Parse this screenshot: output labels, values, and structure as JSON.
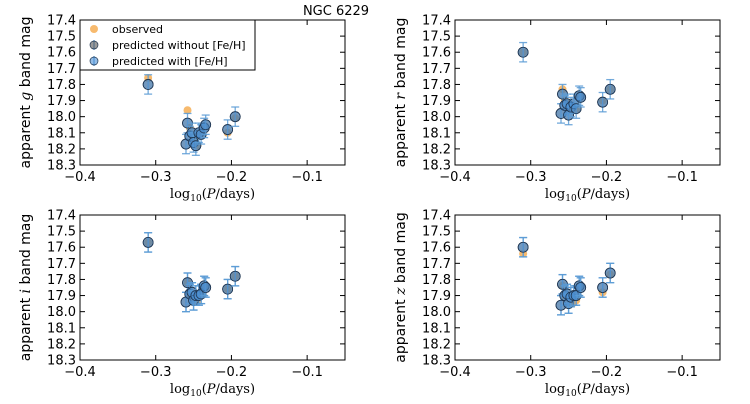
{
  "figure_title": "NGC 6229",
  "colors": {
    "observed": "#f5a94a",
    "predicted_without": "#555555",
    "predicted_with": "#4b8fd6",
    "errorbar": "#5b9bd5"
  },
  "chart_data": [
    {
      "type": "scatter",
      "panel": "g",
      "ylabel": "apparent g band mag",
      "ylabel_parts": [
        "apparent ",
        "g",
        " band mag"
      ],
      "xlabel": "log10(P/days)",
      "xlabel_parts": [
        "log",
        "10",
        "(",
        "P",
        "/days)"
      ],
      "xlim": [
        -0.4,
        -0.05
      ],
      "ylim": [
        18.3,
        17.4
      ],
      "y_inverted": true,
      "xticks": [
        -0.4,
        -0.3,
        -0.2,
        -0.1
      ],
      "xtick_labels": [
        "−0.4",
        "−0.3",
        "−0.2",
        "−0.1"
      ],
      "yticks": [
        17.4,
        17.5,
        17.6,
        17.7,
        17.8,
        17.9,
        18.0,
        18.1,
        18.2,
        18.3
      ],
      "ytick_labels": [
        "17.4",
        "17.5",
        "17.6",
        "17.7",
        "17.8",
        "17.9",
        "18.0",
        "18.1",
        "18.2",
        "18.3"
      ],
      "legend": {
        "position": "top-left",
        "entries": [
          "observed",
          "predicted without [Fe/H]",
          "predicted with [Fe/H]"
        ]
      },
      "series": [
        {
          "name": "observed",
          "x": [
            -0.31,
            -0.258,
            -0.255,
            -0.25,
            -0.245,
            -0.24,
            -0.235,
            -0.205,
            -0.195
          ],
          "y": [
            17.76,
            17.96,
            18.07,
            18.14,
            18.18,
            18.11,
            18.06,
            18.1,
            18.01
          ]
        },
        {
          "name": "predicted without [Fe/H]",
          "x": [
            -0.31,
            -0.26,
            -0.258,
            -0.255,
            -0.252,
            -0.25,
            -0.247,
            -0.243,
            -0.24,
            -0.236,
            -0.234,
            -0.205,
            -0.195
          ],
          "y": [
            17.8,
            18.17,
            18.04,
            18.12,
            18.1,
            18.16,
            18.18,
            18.1,
            18.11,
            18.07,
            18.05,
            18.08,
            18.0
          ]
        },
        {
          "name": "predicted with [Fe/H]",
          "x": [
            -0.31,
            -0.26,
            -0.258,
            -0.255,
            -0.252,
            -0.25,
            -0.247,
            -0.243,
            -0.24,
            -0.236,
            -0.234,
            -0.205,
            -0.195
          ],
          "y": [
            17.8,
            18.17,
            18.04,
            18.12,
            18.1,
            18.16,
            18.18,
            18.1,
            18.11,
            18.07,
            18.05,
            18.08,
            18.0
          ],
          "err": [
            0.06,
            0.06,
            0.06,
            0.06,
            0.06,
            0.06,
            0.06,
            0.06,
            0.06,
            0.06,
            0.06,
            0.06,
            0.06
          ]
        }
      ]
    },
    {
      "type": "scatter",
      "panel": "r",
      "ylabel": "apparent r band mag",
      "ylabel_parts": [
        "apparent ",
        "r",
        " band mag"
      ],
      "xlabel": "log10(P/days)",
      "xlabel_parts": [
        "log",
        "10",
        "(",
        "P",
        "/days)"
      ],
      "xlim": [
        -0.4,
        -0.05
      ],
      "ylim": [
        18.3,
        17.4
      ],
      "y_inverted": true,
      "xticks": [
        -0.4,
        -0.3,
        -0.2,
        -0.1
      ],
      "xtick_labels": [
        "−0.4",
        "−0.3",
        "−0.2",
        "−0.1"
      ],
      "yticks": [
        17.4,
        17.5,
        17.6,
        17.7,
        17.8,
        17.9,
        18.0,
        18.1,
        18.2,
        18.3
      ],
      "ytick_labels": [
        "17.4",
        "17.5",
        "17.6",
        "17.7",
        "17.8",
        "17.9",
        "18.0",
        "18.1",
        "18.2",
        "18.3"
      ],
      "series": [
        {
          "name": "observed",
          "x": [
            -0.31,
            -0.258,
            -0.255,
            -0.25,
            -0.245,
            -0.24,
            -0.235,
            -0.205,
            -0.195
          ],
          "y": [
            17.6,
            17.83,
            17.9,
            17.92,
            17.95,
            17.96,
            17.87,
            17.9,
            17.83
          ]
        },
        {
          "name": "predicted without [Fe/H]",
          "x": [
            -0.31,
            -0.26,
            -0.258,
            -0.255,
            -0.252,
            -0.25,
            -0.247,
            -0.243,
            -0.24,
            -0.236,
            -0.234,
            -0.205,
            -0.195
          ],
          "y": [
            17.6,
            17.98,
            17.86,
            17.93,
            17.92,
            17.99,
            17.94,
            17.92,
            17.95,
            17.87,
            17.88,
            17.91,
            17.83
          ]
        },
        {
          "name": "predicted with [Fe/H]",
          "x": [
            -0.31,
            -0.26,
            -0.258,
            -0.255,
            -0.252,
            -0.25,
            -0.247,
            -0.243,
            -0.24,
            -0.236,
            -0.234,
            -0.205,
            -0.195
          ],
          "y": [
            17.6,
            17.98,
            17.86,
            17.93,
            17.92,
            17.99,
            17.94,
            17.92,
            17.95,
            17.87,
            17.88,
            17.91,
            17.83
          ],
          "err": [
            0.06,
            0.06,
            0.06,
            0.06,
            0.06,
            0.06,
            0.06,
            0.06,
            0.06,
            0.06,
            0.06,
            0.06,
            0.06
          ]
        }
      ]
    },
    {
      "type": "scatter",
      "panel": "i",
      "ylabel": "apparent i band mag",
      "ylabel_parts": [
        "apparent ",
        "i",
        " band mag"
      ],
      "xlabel": "log10(P/days)",
      "xlabel_parts": [
        "log",
        "10",
        "(",
        "P",
        "/days)"
      ],
      "xlim": [
        -0.4,
        -0.05
      ],
      "ylim": [
        18.3,
        17.4
      ],
      "y_inverted": true,
      "xticks": [
        -0.4,
        -0.3,
        -0.2,
        -0.1
      ],
      "xtick_labels": [
        "−0.4",
        "−0.3",
        "−0.2",
        "−0.1"
      ],
      "yticks": [
        17.4,
        17.5,
        17.6,
        17.7,
        17.8,
        17.9,
        18.0,
        18.1,
        18.2,
        18.3
      ],
      "ytick_labels": [
        "17.4",
        "17.5",
        "17.6",
        "17.7",
        "17.8",
        "17.9",
        "18.0",
        "18.1",
        "18.2",
        "18.3"
      ],
      "series": [
        {
          "name": "observed",
          "x": [
            -0.31,
            -0.258,
            -0.255,
            -0.25,
            -0.245,
            -0.24,
            -0.235,
            -0.205,
            -0.195
          ],
          "y": [
            17.57,
            17.82,
            17.9,
            17.92,
            17.93,
            17.89,
            17.85,
            17.86,
            17.78
          ]
        },
        {
          "name": "predicted without [Fe/H]",
          "x": [
            -0.31,
            -0.26,
            -0.258,
            -0.255,
            -0.252,
            -0.25,
            -0.247,
            -0.243,
            -0.24,
            -0.236,
            -0.234,
            -0.205,
            -0.195
          ],
          "y": [
            17.57,
            17.94,
            17.82,
            17.89,
            17.88,
            17.93,
            17.9,
            17.9,
            17.89,
            17.84,
            17.85,
            17.86,
            17.78
          ],
          "err": [
            0.06,
            0.06,
            0.06,
            0.06,
            0.06,
            0.06,
            0.06,
            0.06,
            0.06,
            0.06,
            0.06,
            0.06,
            0.06
          ]
        },
        {
          "name": "predicted with [Fe/H]",
          "x": [
            -0.31,
            -0.26,
            -0.258,
            -0.255,
            -0.252,
            -0.25,
            -0.247,
            -0.243,
            -0.24,
            -0.236,
            -0.234,
            -0.205,
            -0.195
          ],
          "y": [
            17.57,
            17.94,
            17.82,
            17.89,
            17.88,
            17.93,
            17.9,
            17.9,
            17.89,
            17.84,
            17.85,
            17.86,
            17.78
          ],
          "err": [
            0.06,
            0.06,
            0.06,
            0.06,
            0.06,
            0.06,
            0.06,
            0.06,
            0.06,
            0.06,
            0.06,
            0.06,
            0.06
          ]
        }
      ]
    },
    {
      "type": "scatter",
      "panel": "z",
      "ylabel": "apparent z band mag",
      "ylabel_parts": [
        "apparent ",
        "z",
        " band mag"
      ],
      "xlabel": "log10(P/days)",
      "xlabel_parts": [
        "log",
        "10",
        "(",
        "P",
        "/days)"
      ],
      "xlim": [
        -0.4,
        -0.05
      ],
      "ylim": [
        18.3,
        17.4
      ],
      "y_inverted": true,
      "xticks": [
        -0.4,
        -0.3,
        -0.2,
        -0.1
      ],
      "xtick_labels": [
        "−0.4",
        "−0.3",
        "−0.2",
        "−0.1"
      ],
      "yticks": [
        17.4,
        17.5,
        17.6,
        17.7,
        17.8,
        17.9,
        18.0,
        18.1,
        18.2,
        18.3
      ],
      "ytick_labels": [
        "17.4",
        "17.5",
        "17.6",
        "17.7",
        "17.8",
        "17.9",
        "18.0",
        "18.1",
        "18.2",
        "18.3"
      ],
      "series": [
        {
          "name": "observed",
          "x": [
            -0.31,
            -0.258,
            -0.255,
            -0.25,
            -0.245,
            -0.24,
            -0.235,
            -0.205,
            -0.195
          ],
          "y": [
            17.64,
            17.84,
            17.9,
            17.92,
            17.95,
            17.93,
            17.85,
            17.88,
            17.77
          ]
        },
        {
          "name": "predicted without [Fe/H]",
          "x": [
            -0.31,
            -0.26,
            -0.258,
            -0.255,
            -0.252,
            -0.25,
            -0.247,
            -0.243,
            -0.24,
            -0.236,
            -0.234,
            -0.205,
            -0.195
          ],
          "y": [
            17.6,
            17.96,
            17.83,
            17.9,
            17.89,
            17.95,
            17.91,
            17.9,
            17.9,
            17.84,
            17.85,
            17.85,
            17.76
          ],
          "err": [
            0.06,
            0.06,
            0.06,
            0.06,
            0.06,
            0.06,
            0.06,
            0.06,
            0.06,
            0.06,
            0.06,
            0.06,
            0.06
          ]
        },
        {
          "name": "predicted with [Fe/H]",
          "x": [
            -0.31,
            -0.26,
            -0.258,
            -0.255,
            -0.252,
            -0.25,
            -0.247,
            -0.243,
            -0.24,
            -0.236,
            -0.234,
            -0.205,
            -0.195
          ],
          "y": [
            17.6,
            17.96,
            17.83,
            17.9,
            17.89,
            17.95,
            17.91,
            17.9,
            17.9,
            17.84,
            17.85,
            17.85,
            17.76
          ],
          "err": [
            0.06,
            0.06,
            0.06,
            0.06,
            0.06,
            0.06,
            0.06,
            0.06,
            0.06,
            0.06,
            0.06,
            0.06,
            0.06
          ]
        }
      ]
    }
  ]
}
